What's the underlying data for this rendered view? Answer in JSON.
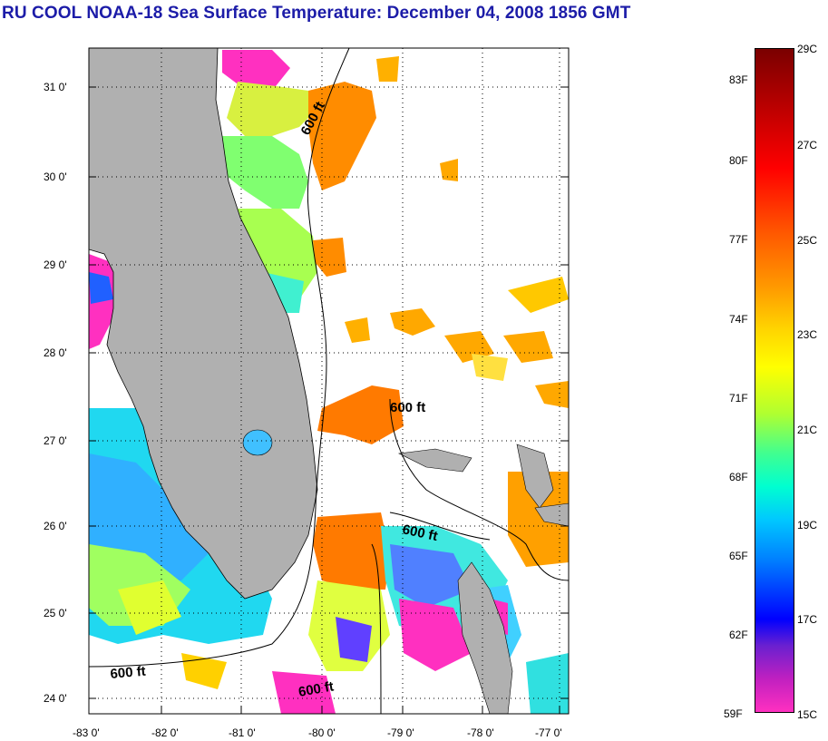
{
  "title": "RU COOL  NOAA-18  Sea Surface Temperature:  December 04, 2008 1856 GMT",
  "map": {
    "lat_labels": [
      "31 0'",
      "30 0'",
      "29 0'",
      "28 0'",
      "27 0'",
      "26 0'",
      "25 0'",
      "24 0'"
    ],
    "lon_labels": [
      "-83 0'",
      "-82 0'",
      "-81 0'",
      "-80 0'",
      "-79 0'",
      "-78 0'",
      "-77 0'"
    ],
    "contour_labels": [
      "600 ft",
      "600 ft",
      "600 ft",
      "600 ft",
      "600 ft"
    ],
    "colors": {
      "land": "#b0b0b0",
      "cloud": "#ffffff",
      "grid": "#000000"
    }
  },
  "colorbar": {
    "fahrenheit": [
      "83F",
      "80F",
      "77F",
      "74F",
      "71F",
      "68F",
      "65F",
      "62F",
      "59F"
    ],
    "celsius": [
      "29C",
      "27C",
      "25C",
      "23C",
      "21C",
      "19C",
      "17C",
      "15C"
    ]
  }
}
